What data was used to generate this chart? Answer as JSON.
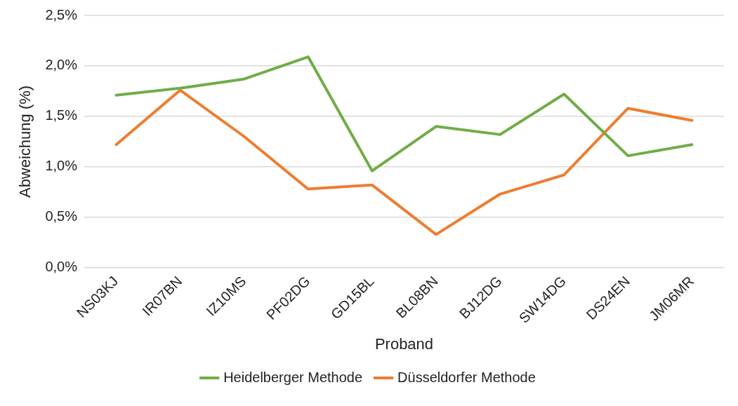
{
  "chart_data": {
    "type": "line",
    "xlabel": "Proband",
    "ylabel": "Abweichung (%)",
    "categories": [
      "NS03KJ",
      "IR07BN",
      "IZ10MS",
      "PF02DG",
      "GD15BL",
      "BL08BN",
      "BJ12DG",
      "SW14DG",
      "DS24EN",
      "JM06MR"
    ],
    "series": [
      {
        "name": "Heidelberger Methode",
        "color": "#70ad47",
        "values": [
          1.71,
          1.78,
          1.87,
          2.09,
          0.96,
          1.4,
          1.32,
          1.72,
          1.11,
          1.22
        ]
      },
      {
        "name": "Düsseldorfer Methode",
        "color": "#ed7d31",
        "values": [
          1.22,
          1.76,
          1.3,
          0.78,
          0.82,
          0.33,
          0.73,
          0.92,
          1.58,
          1.46
        ]
      }
    ],
    "ylim": [
      0,
      2.5
    ],
    "yticks": [
      {
        "value": 0,
        "label": "0,0%"
      },
      {
        "value": 0.5,
        "label": "0,5%"
      },
      {
        "value": 1,
        "label": "1,0%"
      },
      {
        "value": 1.5,
        "label": "1,5%"
      },
      {
        "value": 2,
        "label": "2,0%"
      },
      {
        "value": 2.5,
        "label": "2,5%"
      }
    ],
    "grid": "y",
    "legend": "bottom",
    "marker": "none",
    "line_style": "solid"
  }
}
